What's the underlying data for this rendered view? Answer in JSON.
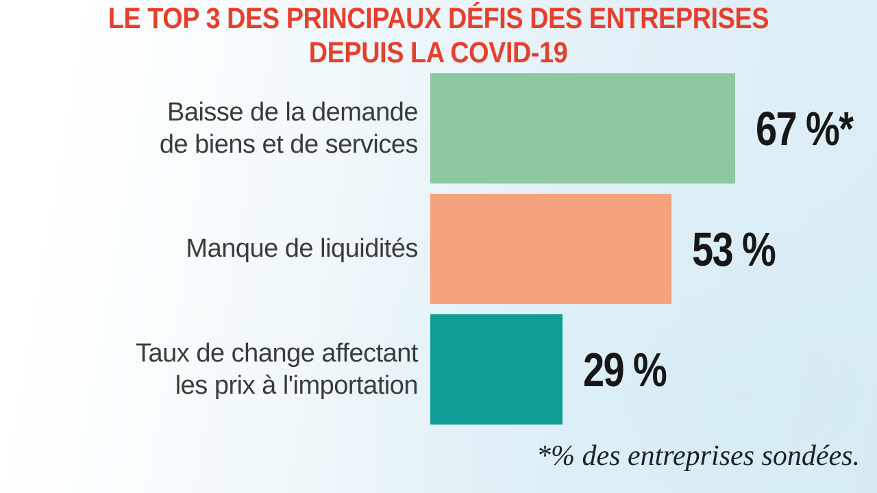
{
  "title": {
    "line1": "LE TOP 3 DES PRINCIPAUX DÉFIS DES ENTREPRISES",
    "line2": "DEPUIS LA COVID-19"
  },
  "chart_data": {
    "type": "bar",
    "orientation": "horizontal",
    "title": "LE TOP 3 DES PRINCIPAUX DÉFIS DES ENTREPRISES DEPUIS LA COVID-19",
    "categories": [
      "Baisse de la demande de biens et de services",
      "Manque de liquidités",
      "Taux de change affectant les prix à l'importation"
    ],
    "values": [
      67,
      53,
      29
    ],
    "value_labels": [
      "67 %*",
      "53 %",
      "29 %"
    ],
    "bar_colors": [
      "#8dc9a0",
      "#f5a37e",
      "#0f9d95"
    ],
    "xlim": [
      0,
      100
    ],
    "grid": false,
    "legend": false,
    "footnote": "*% des entreprises sondées.",
    "unit": "% des entreprises sondées"
  },
  "rows": [
    {
      "label_line1": "Baisse de la demande",
      "label_line2": "de biens et de services",
      "value": 67,
      "value_label": "67 %*",
      "bar_color": "#8dc9a0"
    },
    {
      "label_line1": "Manque de liquidités",
      "label_line2": "",
      "value": 53,
      "value_label": "53 %",
      "bar_color": "#f5a37e"
    },
    {
      "label_line1": "Taux de change affectant",
      "label_line2": "les prix à l'importation",
      "value": 29,
      "value_label": "29 %",
      "bar_color": "#0f9d95"
    }
  ],
  "footnote": "*% des entreprises sondées.",
  "colors": {
    "title_red": "#e5402e",
    "bar_green": "#8dc9a0",
    "bar_salmon": "#f5a37e",
    "bar_teal": "#0f9d95",
    "label_text": "#3b3b3b",
    "value_text": "#171717",
    "bg_left": "#ffffff",
    "bg_right": "#daecf5"
  }
}
